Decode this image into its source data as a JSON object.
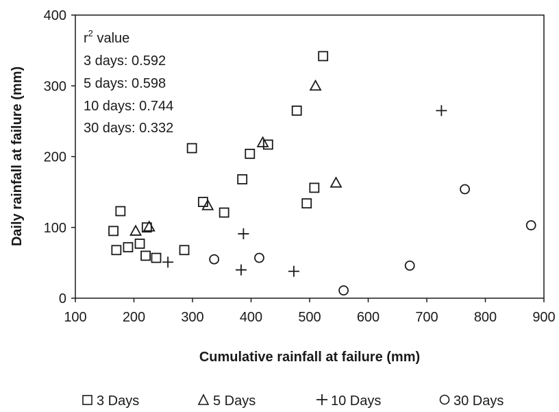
{
  "chart_data": {
    "type": "scatter",
    "xlabel": "Cumulative rainfall at failure (mm)",
    "ylabel": "Daily rainfall at failure (mm)",
    "xlim": [
      100,
      900
    ],
    "ylim": [
      0,
      400
    ],
    "x_ticks": [
      "100",
      "200",
      "300",
      "400",
      "500",
      "600",
      "700",
      "800",
      "900"
    ],
    "y_ticks": [
      "0",
      "100",
      "200",
      "300",
      "400"
    ],
    "grid": false,
    "legend_position": "bottom",
    "annotation": {
      "heading_prefix": "r",
      "heading_sup": "2",
      "heading_suffix": " value",
      "lines": [
        "3 days: 0.592",
        "5 days: 0.598",
        "10 days: 0.744",
        "30 days: 0.332"
      ]
    },
    "series": [
      {
        "name": "3 Days",
        "marker": "square",
        "points": [
          [
            165,
            95
          ],
          [
            170,
            68
          ],
          [
            177,
            123
          ],
          [
            190,
            72
          ],
          [
            210,
            77
          ],
          [
            220,
            60
          ],
          [
            222,
            100
          ],
          [
            238,
            57
          ],
          [
            286,
            68
          ],
          [
            299,
            212
          ],
          [
            318,
            136
          ],
          [
            354,
            121
          ],
          [
            385,
            168
          ],
          [
            398,
            204
          ],
          [
            429,
            217
          ],
          [
            478,
            265
          ],
          [
            495,
            134
          ],
          [
            508,
            156
          ],
          [
            523,
            342
          ]
        ]
      },
      {
        "name": "5 Days",
        "marker": "triangle",
        "points": [
          [
            203,
            95
          ],
          [
            226,
            101
          ],
          [
            326,
            131
          ],
          [
            420,
            220
          ],
          [
            510,
            300
          ],
          [
            545,
            163
          ]
        ]
      },
      {
        "name": "10 Days",
        "marker": "plus",
        "points": [
          [
            258,
            51
          ],
          [
            383,
            40
          ],
          [
            387,
            91
          ],
          [
            473,
            38
          ],
          [
            725,
            265
          ]
        ]
      },
      {
        "name": "30 Days",
        "marker": "circle",
        "points": [
          [
            337,
            55
          ],
          [
            414,
            57
          ],
          [
            558,
            11
          ],
          [
            671,
            46
          ],
          [
            765,
            154
          ],
          [
            878,
            103
          ]
        ]
      }
    ]
  }
}
